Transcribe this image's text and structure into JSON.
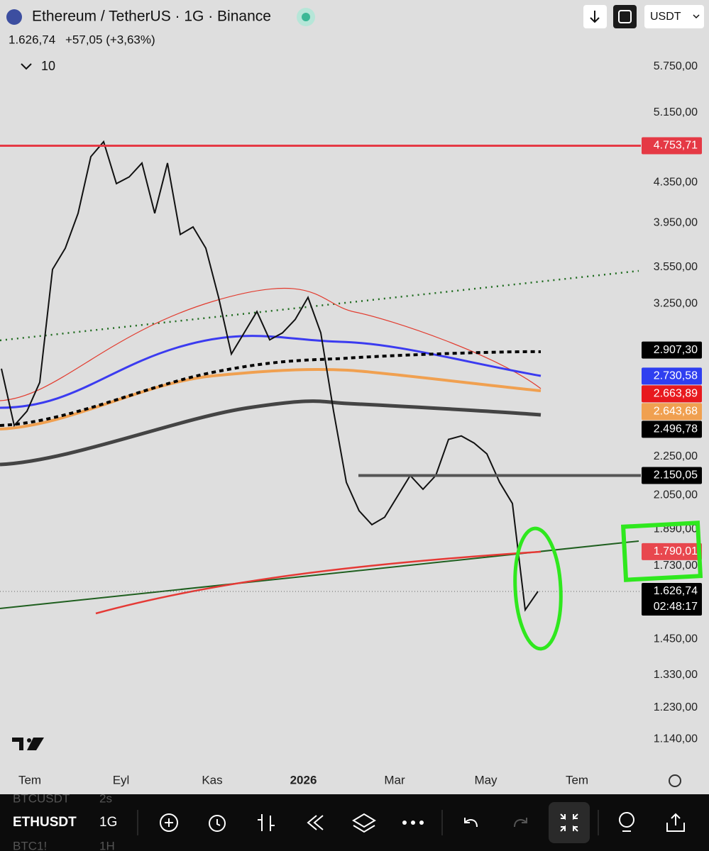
{
  "header": {
    "symbol_title": "Ethereum / TetherUS · 1G · Binance",
    "last_price": "1.626,74",
    "change": "+57,05 (+3,63%)",
    "indicators_count": "10",
    "currency": "USDT"
  },
  "chart_data": {
    "type": "line",
    "color": "#111111",
    "log_scale": true,
    "ylim": [
      1060,
      6750
    ],
    "yticks": [
      {
        "value": 5750,
        "label": "5.750,00"
      },
      {
        "value": 5150,
        "label": "5.150,00"
      },
      {
        "value": 4350,
        "label": "4.350,00"
      },
      {
        "value": 3950,
        "label": "3.950,00"
      },
      {
        "value": 3550,
        "label": "3.550,00"
      },
      {
        "value": 3250,
        "label": "3.250,00"
      },
      {
        "value": 2250,
        "label": "2.250,00"
      },
      {
        "value": 2050,
        "label": "2.050,00"
      },
      {
        "value": 1890,
        "label": "1.890,00"
      },
      {
        "value": 1730,
        "label": "1.730,00"
      },
      {
        "value": 1450,
        "label": "1.450,00"
      },
      {
        "value": 1330,
        "label": "1.330,00"
      },
      {
        "value": 1230,
        "label": "1.230,00"
      },
      {
        "value": 1140,
        "label": "1.140,00"
      }
    ],
    "xtick_labels": [
      "Tem",
      "Eyl",
      "Kas",
      "2026",
      "Mar",
      "May",
      "Tem"
    ],
    "values": [
      2780,
      2425,
      2510,
      2690,
      3530,
      3715,
      4040,
      4630,
      4800,
      4340,
      4410,
      4560,
      4040,
      4560,
      3840,
      3910,
      3715,
      3300,
      2880,
      3030,
      3190,
      2980,
      3030,
      3130,
      3300,
      3030,
      2510,
      2115,
      1975,
      1910,
      1945,
      2045,
      2150,
      2080,
      2150,
      2345,
      2365,
      2325,
      2265,
      2115,
      2010,
      1556,
      1627
    ],
    "price_tags": [
      {
        "value": 4753.71,
        "label": "4.753,71",
        "color": "#e53945"
      },
      {
        "value": 2907.3,
        "label": "2.907,30",
        "color": "#000000"
      },
      {
        "value": 2730.58,
        "label": "2.730,58",
        "color": "#2f3ff0"
      },
      {
        "value": 2663.89,
        "label": "2.663,89",
        "color": "#e8191e"
      },
      {
        "value": 2643.68,
        "label": "2.643,68",
        "color": "#f0a050"
      },
      {
        "value": 2496.78,
        "label": "2.496,78",
        "color": "#000000"
      },
      {
        "value": 2150.05,
        "label": "2.150,05",
        "color": "#000000"
      },
      {
        "value": 1790.01,
        "label": "1.790,01",
        "color": "#e8474e"
      },
      {
        "value": 1626.74,
        "label": "1.626,74",
        "color": "#000000"
      }
    ],
    "countdown": "02:48:17"
  },
  "toolbar": {
    "symbol": "ETHUSDT",
    "interval": "1G",
    "other_symbols": [
      "BTCUSDT",
      "BTC1!"
    ],
    "other_intervals": [
      "2s",
      "1H"
    ]
  }
}
